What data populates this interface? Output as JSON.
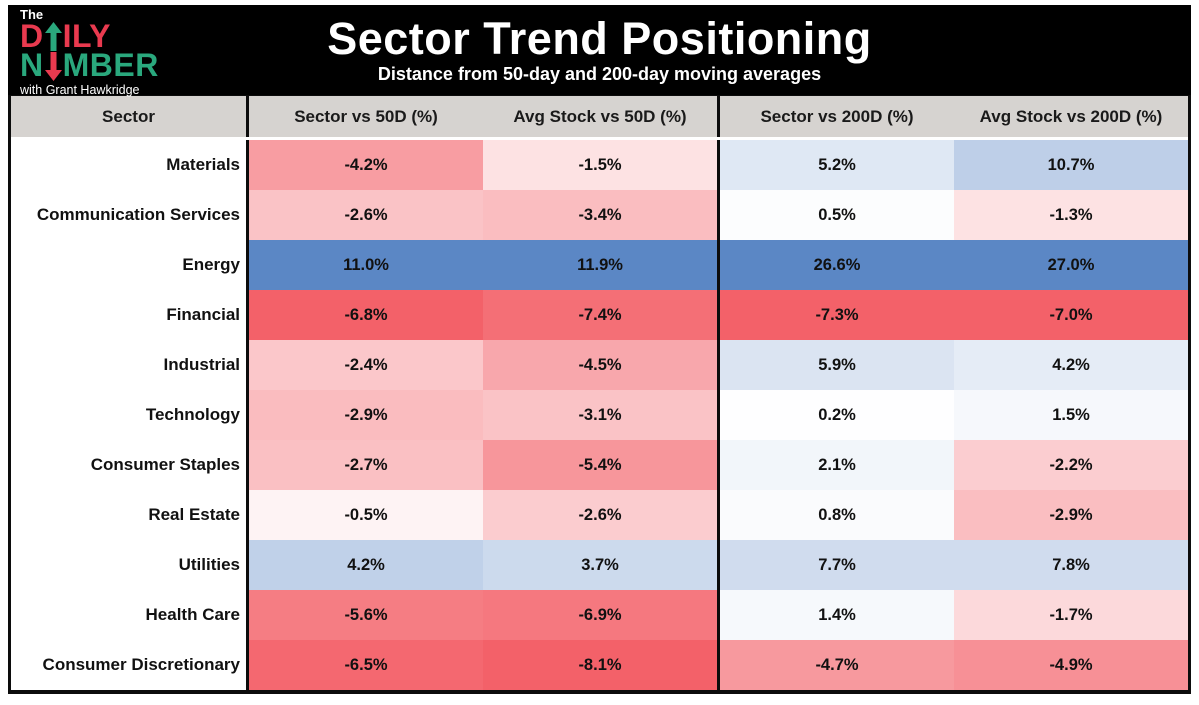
{
  "logo": {
    "the": "The",
    "daily_d": "D",
    "daily_rest": "ILY",
    "number_n": "N",
    "number_rest": "MBER",
    "tagline": "with Grant Hawkridge",
    "red": "#e93a4f",
    "green": "#2aa87d"
  },
  "header": {
    "title": "Sector Trend Positioning",
    "subtitle": "Distance from 50-day and 200-day moving averages"
  },
  "chart_data": {
    "type": "heatmap",
    "title": "Sector Trend Positioning",
    "subtitle": "Distance from 50-day and 200-day moving averages",
    "columns": [
      "Sector",
      "Sector vs 50D (%)",
      "Avg Stock vs 50D (%)",
      "Sector vs 200D (%)",
      "Avg Stock vs 200D (%)"
    ],
    "rows": [
      {
        "sector": "Materials",
        "values": [
          -4.2,
          -1.5,
          5.2,
          10.7
        ]
      },
      {
        "sector": "Communication Services",
        "values": [
          -2.6,
          -3.4,
          0.5,
          -1.3
        ]
      },
      {
        "sector": "Energy",
        "values": [
          11.0,
          11.9,
          26.6,
          27.0
        ]
      },
      {
        "sector": "Financial",
        "values": [
          -6.8,
          -7.4,
          -7.3,
          -7.0
        ]
      },
      {
        "sector": "Industrial",
        "values": [
          -2.4,
          -4.5,
          5.9,
          4.2
        ]
      },
      {
        "sector": "Technology",
        "values": [
          -2.9,
          -3.1,
          0.2,
          1.5
        ]
      },
      {
        "sector": "Consumer Staples",
        "values": [
          -2.7,
          -5.4,
          2.1,
          -2.2
        ]
      },
      {
        "sector": "Real Estate",
        "values": [
          -0.5,
          -2.6,
          0.8,
          -2.9
        ]
      },
      {
        "sector": "Utilities",
        "values": [
          4.2,
          3.7,
          7.7,
          7.8
        ]
      },
      {
        "sector": "Health Care",
        "values": [
          -5.6,
          -6.9,
          1.4,
          -1.7
        ]
      },
      {
        "sector": "Consumer Discretionary",
        "values": [
          -6.5,
          -8.1,
          -4.7,
          -4.9
        ]
      }
    ],
    "value_suffix": "%",
    "colormap": {
      "negative": "#f36169",
      "mid": "#ffffff",
      "positive": "#5b87c5",
      "normalization": "per-column min/max"
    },
    "layout": {
      "legend": "none",
      "grid": "column dividers only"
    }
  }
}
